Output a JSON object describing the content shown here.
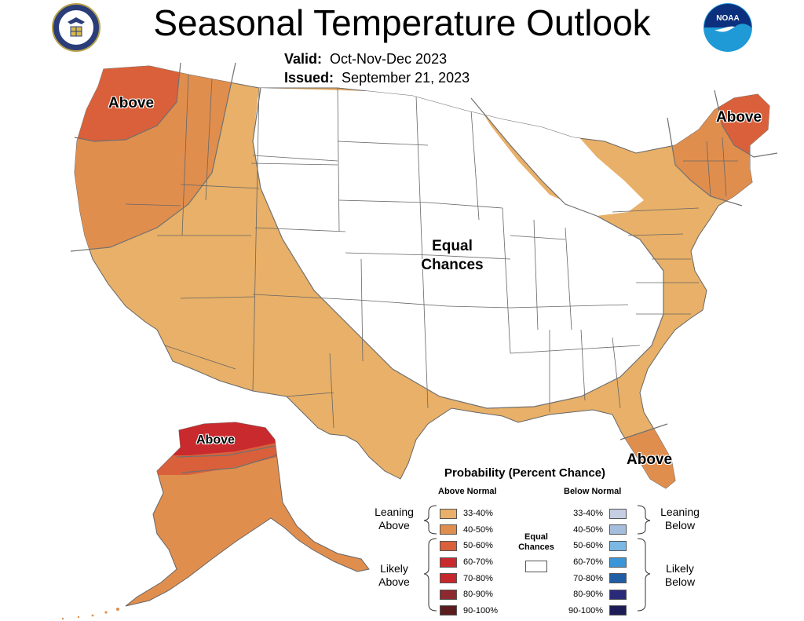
{
  "title": "Seasonal Temperature Outlook",
  "valid_label": "Valid:",
  "valid_value": "Oct-Nov-Dec 2023",
  "issued_label": "Issued:",
  "issued_value": "September 21, 2023",
  "map_labels": {
    "northwest": "Above",
    "northeast": "Above",
    "central_line1": "Equal",
    "central_line2": "Chances",
    "florida": "Above",
    "alaska": "Above"
  },
  "logos": {
    "commerce": "Department of Commerce seal",
    "noaa": "NOAA",
    "commerce_icon": "commerce-seal-icon",
    "noaa_icon": "noaa-logo-icon"
  },
  "colors": {
    "ocean": "#ffffff",
    "equal_chances": "#ffffff",
    "above_33_40": "#e8b068",
    "above_40_50": "#e08e4e",
    "above_50_60": "#d9603a",
    "above_60_70": "#c92a2e",
    "above_70_80": "#c5272c",
    "above_80_90": "#8c2a2f",
    "above_90_100": "#5a1c1e",
    "below_33_40": "#c4cde2",
    "below_40_50": "#a6bede",
    "below_50_60": "#7bb8e4",
    "below_60_70": "#3a96d8",
    "below_70_80": "#1f5ea4",
    "below_80_90": "#2a2a7a",
    "below_90_100": "#1d1b56"
  },
  "legend": {
    "title": "Probability (Percent Chance)",
    "above_header": "Above Normal",
    "below_header": "Below Normal",
    "leaning_above": [
      "Leaning",
      "Above"
    ],
    "likely_above": [
      "Likely",
      "Above"
    ],
    "leaning_below": [
      "Leaning",
      "Below"
    ],
    "likely_below": [
      "Likely",
      "Below"
    ],
    "equal_chances": [
      "Equal",
      "Chances"
    ],
    "above_rows": [
      {
        "label": "33-40%",
        "color_key": "above_33_40"
      },
      {
        "label": "40-50%",
        "color_key": "above_40_50"
      },
      {
        "label": "50-60%",
        "color_key": "above_50_60"
      },
      {
        "label": "60-70%",
        "color_key": "above_60_70"
      },
      {
        "label": "70-80%",
        "color_key": "above_70_80"
      },
      {
        "label": "80-90%",
        "color_key": "above_80_90"
      },
      {
        "label": "90-100%",
        "color_key": "above_90_100"
      }
    ],
    "below_rows": [
      {
        "label": "33-40%",
        "color_key": "below_33_40"
      },
      {
        "label": "40-50%",
        "color_key": "below_40_50"
      },
      {
        "label": "50-60%",
        "color_key": "below_50_60"
      },
      {
        "label": "60-70%",
        "color_key": "below_60_70"
      },
      {
        "label": "70-80%",
        "color_key": "below_70_80"
      },
      {
        "label": "80-90%",
        "color_key": "below_80_90"
      },
      {
        "label": "90-100%",
        "color_key": "below_90_100"
      }
    ]
  }
}
